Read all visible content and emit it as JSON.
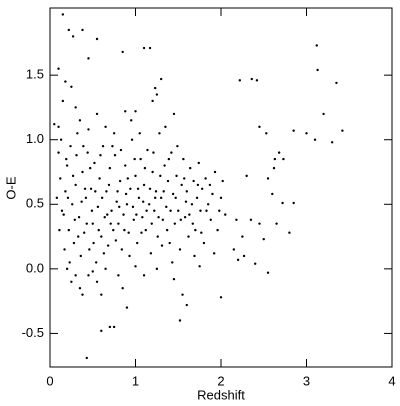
{
  "chart_data": {
    "type": "scatter",
    "xlabel": "Redshift",
    "ylabel": "O-E",
    "color": "#000000",
    "xlim": [
      0,
      4
    ],
    "ylim": [
      -0.76,
      2.02
    ],
    "xticks": [
      0,
      1,
      2,
      3,
      4
    ],
    "yticks": [
      {
        "value": -0.5,
        "label": "-0.5"
      },
      {
        "value": 0,
        "label": "0.0"
      },
      0.5,
      {
        "value": 1,
        "label": "1.0"
      },
      1.5
    ],
    "x": [
      0.15,
      0.22,
      0.27,
      0.38,
      0.55,
      0.45,
      0.1,
      0.85,
      1.1,
      1.17,
      0.18,
      0.25,
      0.05,
      0.1,
      0.15,
      0.3,
      0.55,
      0.88,
      1.0,
      1.25,
      1.2,
      1.23,
      1.3,
      2.22,
      2.36,
      2.42,
      3.12,
      3.13,
      3.35,
      2.45,
      2.53,
      2.85,
      3.0,
      3.1,
      3.2,
      3.3,
      3.42,
      2.68,
      2.63,
      2.62,
      2.73,
      2.3,
      2.55,
      2.6,
      2.72,
      2.85,
      2.65,
      2.8,
      2.5,
      2.45,
      2.35,
      2.18,
      2.25,
      2.15,
      2.2,
      2.27,
      2.4,
      2.55,
      2.0,
      1.75,
      1.55,
      1.6,
      1.52,
      0.9,
      0.75,
      0.6,
      0.7,
      0.43,
      0.38,
      0.35,
      0.25,
      0.45,
      0.55,
      1.1,
      0.1,
      0.12,
      0.14,
      0.16,
      0.18,
      0.2,
      0.22,
      0.24,
      0.26,
      0.28,
      0.3,
      0.32,
      0.34,
      0.36,
      0.38,
      0.4,
      0.42,
      0.44,
      0.46,
      0.48,
      0.5,
      0.52,
      0.54,
      0.56,
      0.58,
      0.6,
      0.62,
      0.64,
      0.66,
      0.68,
      0.7,
      0.72,
      0.74,
      0.76,
      0.78,
      0.8,
      0.82,
      0.84,
      0.86,
      0.88,
      0.9,
      0.92,
      0.94,
      0.96,
      0.98,
      1.0,
      1.02,
      1.04,
      1.06,
      1.08,
      1.1,
      1.12,
      1.14,
      1.16,
      1.18,
      1.2,
      1.22,
      1.24,
      1.26,
      1.28,
      1.3,
      1.32,
      1.34,
      1.36,
      1.38,
      1.4,
      1.42,
      1.44,
      1.46,
      1.48,
      1.5,
      1.52,
      1.54,
      1.56,
      1.58,
      1.6,
      1.62,
      1.64,
      1.66,
      1.68,
      1.7,
      1.72,
      1.74,
      1.76,
      1.78,
      1.8,
      1.82,
      1.85,
      1.88,
      1.9,
      1.93,
      1.96,
      2.0,
      2.02,
      2.05,
      0.08,
      0.11,
      0.13,
      0.17,
      0.19,
      0.21,
      0.23,
      0.27,
      0.29,
      0.31,
      0.33,
      0.37,
      0.39,
      0.41,
      0.43,
      0.47,
      0.49,
      0.51,
      0.53,
      0.57,
      0.59,
      0.61,
      0.63,
      0.67,
      0.69,
      0.71,
      0.73,
      0.77,
      0.79,
      0.81,
      0.83,
      0.87,
      0.89,
      0.91,
      0.93,
      0.97,
      0.99,
      1.01,
      1.03,
      1.07,
      1.09,
      1.11,
      1.13,
      1.17,
      1.19,
      1.21,
      1.23,
      1.27,
      1.29,
      1.31,
      1.33,
      1.37,
      1.39,
      1.41,
      1.43,
      1.47,
      1.49,
      1.53,
      1.57,
      1.59,
      1.63,
      1.67,
      1.69,
      1.73,
      1.77,
      1.83,
      1.87,
      1.92,
      1.98,
      0.35,
      0.65,
      0.95,
      1.35,
      1.45,
      1.05,
      0.75,
      0.45,
      0.2,
      0.3,
      0.5,
      0.65,
      0.8,
      1.0,
      1.25,
      1.45,
      0.6,
      0.85
    ],
    "values": [
      1.97,
      1.85,
      1.8,
      1.85,
      1.78,
      1.63,
      1.55,
      1.68,
      1.71,
      1.71,
      1.45,
      1.41,
      1.12,
      1.1,
      1.3,
      1.25,
      1.2,
      1.22,
      1.22,
      1.35,
      1.3,
      1.4,
      1.47,
      1.46,
      1.47,
      1.46,
      1.73,
      1.54,
      1.44,
      1.1,
      1.05,
      1.07,
      1.05,
      1.0,
      1.2,
      0.98,
      1.07,
      0.9,
      0.85,
      0.78,
      0.85,
      0.72,
      0.7,
      0.58,
      0.51,
      0.51,
      0.35,
      0.28,
      0.23,
      0.35,
      0.38,
      0.38,
      0.25,
      0.15,
      0.07,
      0.1,
      0.04,
      -0.03,
      -0.22,
      0.02,
      -0.2,
      -0.28,
      -0.4,
      -0.3,
      -0.45,
      -0.48,
      -0.45,
      -0.69,
      -0.2,
      -0.15,
      -0.1,
      -0.05,
      -0.1,
      -0.05,
      0.9,
      0.7,
      0.45,
      0.42,
      0.6,
      0.8,
      0.3,
      0.95,
      0.5,
      0.2,
      0.65,
      1.05,
      0.4,
      0.1,
      0.75,
      0.28,
      0.55,
      0.9,
      0.15,
      0.62,
      0.35,
      0.82,
      0.05,
      0.48,
      0.7,
      0.25,
      0.95,
      0.4,
      0.6,
      0.18,
      0.78,
      0.45,
      0.3,
      0.88,
      0.52,
      0.35,
      0.68,
      0.15,
      0.42,
      0.8,
      0.5,
      0.28,
      0.62,
      1.0,
      0.38,
      0.72,
      0.2,
      0.55,
      0.85,
      0.4,
      0.65,
      0.3,
      0.92,
      0.5,
      0.12,
      0.75,
      0.45,
      0.6,
      0.25,
      1.05,
      0.55,
      0.38,
      0.8,
      0.48,
      0.68,
      0.2,
      0.9,
      0.58,
      0.35,
      0.72,
      0.45,
      0.15,
      0.65,
      0.85,
      0.4,
      0.6,
      0.25,
      0.78,
      0.5,
      0.68,
      0.3,
      0.55,
      0.82,
      0.45,
      0.62,
      0.2,
      0.7,
      0.5,
      0.38,
      0.58,
      0.75,
      0.3,
      0.55,
      0.68,
      0.42,
      0.55,
      0.3,
      1.0,
      0.15,
      0.85,
      0.55,
      0.05,
      0.72,
      0.38,
      0.88,
      0.25,
      0.52,
      0.95,
      0.62,
      0.35,
      0.78,
      0.45,
      0.2,
      0.6,
      0.3,
      0.88,
      0.55,
      0.12,
      0.42,
      0.65,
      0.35,
      0.95,
      0.22,
      0.6,
      0.48,
      0.92,
      0.3,
      0.58,
      0.7,
      0.1,
      0.48,
      0.85,
      0.42,
      0.62,
      0.28,
      0.52,
      0.78,
      0.45,
      0.62,
      0.35,
      0.9,
      0.55,
      0.4,
      0.72,
      0.18,
      0.6,
      0.3,
      0.85,
      0.45,
      0.05,
      0.55,
      0.95,
      0.38,
      0.7,
      0.52,
      0.42,
      0.35,
      0.1,
      0.65,
      0.28,
      0.45,
      0.65,
      0.12,
      0.45,
      1.15,
      1.1,
      1.15,
      1.1,
      1.2,
      1.05,
      1.05,
      1.08,
      0.0,
      -0.05,
      -0.02,
      0.0,
      -0.05,
      0.02,
      0.0,
      -0.08,
      -0.2,
      -0.15
    ]
  }
}
